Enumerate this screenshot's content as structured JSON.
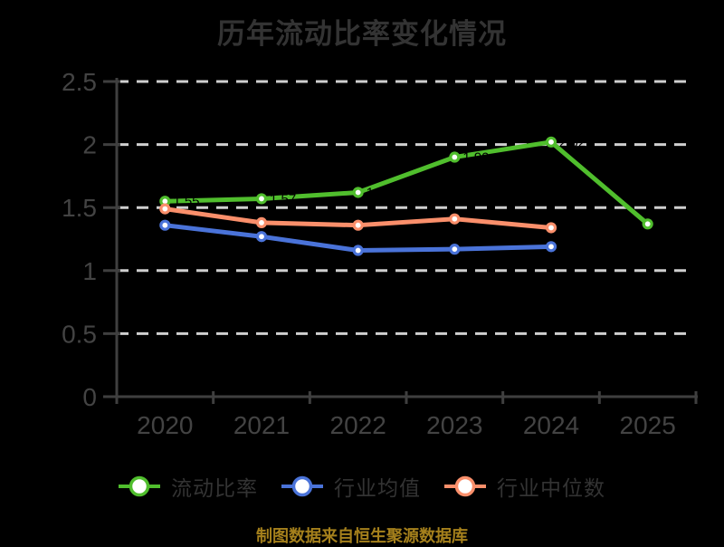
{
  "title": "历年流动比率变化情况",
  "footer": "制图数据来自恒生聚源数据库",
  "colors": {
    "background": "#000000",
    "grid": "#cfcfcf",
    "axis": "#3f3f3f",
    "tick_label": "#434343",
    "title_text": "#333333",
    "legend_text": "#333333",
    "point_label": "#000000",
    "marker_fill": "#ffffff",
    "footer_text": "#a5801c"
  },
  "chart_data": {
    "type": "line",
    "title": "历年流动比率变化情况",
    "categories": [
      "2020",
      "2021",
      "2022",
      "2023",
      "2024",
      "2025"
    ],
    "series": [
      {
        "name": "流动比率",
        "color": "#50be2d",
        "values": [
          1.55,
          1.57,
          1.62,
          1.9,
          2.02,
          1.37
        ],
        "point_labels": [
          "1.55",
          "1.57",
          "1.62",
          "1.90",
          "2.02",
          "1.37"
        ]
      },
      {
        "name": "行业均值",
        "color": "#4a73d9",
        "values": [
          1.36,
          1.27,
          1.16,
          1.17,
          1.19,
          null
        ],
        "point_labels": null
      },
      {
        "name": "行业中位数",
        "color": "#fa8f6b",
        "values": [
          1.49,
          1.38,
          1.36,
          1.41,
          1.34,
          null
        ],
        "point_labels": null
      }
    ],
    "ylim": [
      0,
      2.5
    ],
    "yticks": [
      0,
      0.5,
      1,
      1.5,
      2,
      2.5
    ],
    "ytick_labels": [
      "0",
      "0.5",
      "1",
      "1.5",
      "2",
      "2.5"
    ],
    "grid": "dashed horizontal",
    "legend_position": "bottom",
    "source_note": "制图数据来自恒生聚源数据库"
  }
}
